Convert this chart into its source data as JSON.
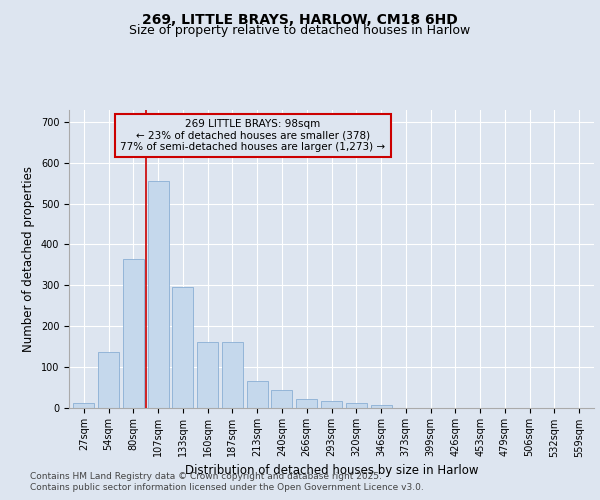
{
  "title_line1": "269, LITTLE BRAYS, HARLOW, CM18 6HD",
  "title_line2": "Size of property relative to detached houses in Harlow",
  "xlabel": "Distribution of detached houses by size in Harlow",
  "ylabel": "Number of detached properties",
  "background_color": "#dde5f0",
  "bar_color": "#c5d8ec",
  "bar_edge_color": "#8aafd4",
  "annotation_text_line1": "269 LITTLE BRAYS: 98sqm",
  "annotation_text_line2": "← 23% of detached houses are smaller (378)",
  "annotation_text_line3": "77% of semi-detached houses are larger (1,273) →",
  "annotation_box_color": "#cc0000",
  "vline_color": "#cc0000",
  "vline_pos": 2.5,
  "categories": [
    "27sqm",
    "54sqm",
    "80sqm",
    "107sqm",
    "133sqm",
    "160sqm",
    "187sqm",
    "213sqm",
    "240sqm",
    "266sqm",
    "293sqm",
    "320sqm",
    "346sqm",
    "373sqm",
    "399sqm",
    "426sqm",
    "453sqm",
    "479sqm",
    "506sqm",
    "532sqm",
    "559sqm"
  ],
  "values": [
    10,
    135,
    365,
    555,
    295,
    160,
    160,
    65,
    42,
    22,
    17,
    10,
    5,
    0,
    0,
    0,
    0,
    0,
    0,
    0,
    0
  ],
  "ylim": [
    0,
    730
  ],
  "yticks": [
    0,
    100,
    200,
    300,
    400,
    500,
    600,
    700
  ],
  "footer_line1": "Contains HM Land Registry data © Crown copyright and database right 2025.",
  "footer_line2": "Contains public sector information licensed under the Open Government Licence v3.0.",
  "title_fontsize": 10,
  "subtitle_fontsize": 9,
  "axis_label_fontsize": 8.5,
  "tick_fontsize": 7,
  "footer_fontsize": 6.5,
  "annot_fontsize": 7.5
}
